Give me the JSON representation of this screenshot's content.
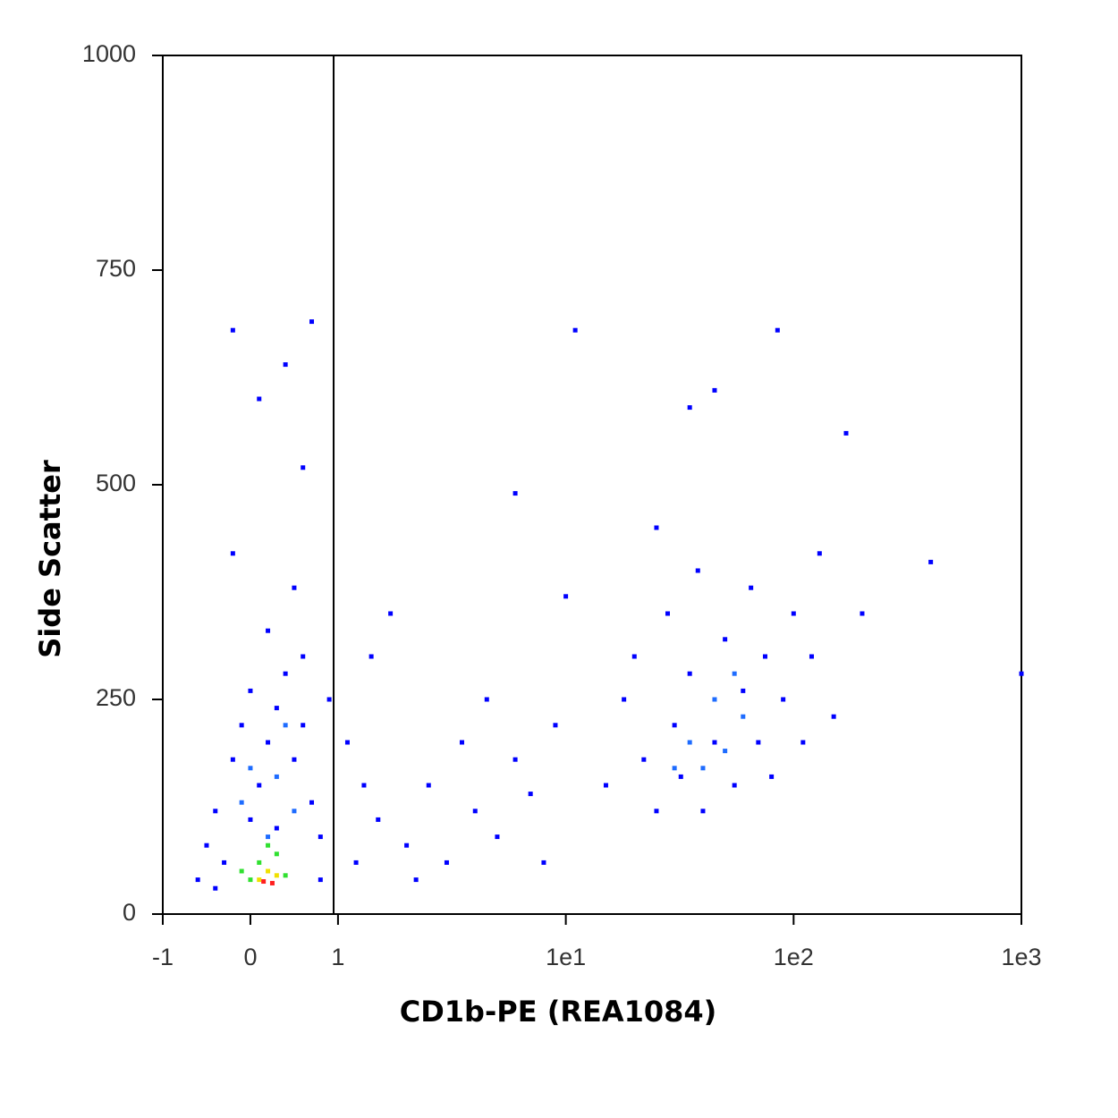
{
  "chart_data": {
    "type": "scatter",
    "x_label": "CD1b-PE (REA1084)",
    "y_label": "Side Scatter",
    "xscale": "biexponential",
    "xlim": [
      -1,
      1000
    ],
    "ylim": [
      0,
      1000
    ],
    "xticks": [
      -1,
      0,
      1,
      {
        "value": 10,
        "label": "1e1"
      },
      {
        "value": 100,
        "label": "1e2"
      },
      {
        "value": 1000,
        "label": "1e3"
      }
    ],
    "yticks": [
      0,
      250,
      500,
      750,
      1000
    ],
    "gate_x": 0.95,
    "series": [
      {
        "color": "#0000ff",
        "x": [
          -0.6,
          -0.5,
          -0.4,
          -0.3,
          -0.2,
          -0.1,
          0,
          0.1,
          0.2,
          0.3,
          0.4,
          0.5,
          0.6,
          0.7,
          0.8,
          0.9,
          1.1,
          1.3,
          1.5,
          1.2,
          0.2,
          0.5,
          -0.2,
          0.6,
          0.1,
          -0.2,
          0.7,
          0.4,
          1.4,
          1.7,
          0.3,
          -0.4,
          0.8,
          0,
          0.6,
          2,
          2.5,
          3,
          3.5,
          4,
          5,
          6,
          7,
          8,
          9,
          2.2,
          4.5,
          6,
          11,
          10,
          15,
          18,
          20,
          22,
          25,
          28,
          30,
          32,
          35,
          38,
          40,
          45,
          50,
          55,
          60,
          65,
          70,
          75,
          80,
          90,
          100,
          110,
          120,
          130,
          150,
          170,
          200,
          400,
          1000,
          85,
          45,
          25,
          35
        ],
        "y": [
          40,
          80,
          120,
          60,
          180,
          220,
          260,
          150,
          200,
          240,
          280,
          180,
          220,
          130,
          90,
          250,
          200,
          150,
          110,
          60,
          330,
          380,
          420,
          520,
          600,
          680,
          690,
          640,
          300,
          350,
          100,
          30,
          40,
          110,
          300,
          80,
          150,
          60,
          200,
          120,
          90,
          180,
          140,
          60,
          220,
          40,
          250,
          490,
          680,
          370,
          150,
          250,
          300,
          180,
          120,
          350,
          220,
          160,
          280,
          400,
          120,
          200,
          320,
          150,
          260,
          380,
          200,
          300,
          160,
          250,
          350,
          200,
          300,
          420,
          230,
          560,
          350,
          410,
          280,
          680,
          610,
          450,
          590
        ]
      },
      {
        "color": "#1e6cff",
        "x": [
          0,
          0.3,
          0.5,
          -0.1,
          0.4,
          0.2,
          35,
          40,
          45,
          50,
          60,
          55,
          30
        ],
        "y": [
          170,
          160,
          120,
          130,
          220,
          90,
          200,
          170,
          250,
          190,
          230,
          280,
          170
        ]
      },
      {
        "color": "#30e030",
        "x": [
          0.1,
          0.3,
          -0.1,
          0.4,
          0.2,
          0
        ],
        "y": [
          60,
          70,
          50,
          45,
          80,
          40
        ]
      },
      {
        "color": "#f0e000",
        "x": [
          0.1,
          0.3,
          0.2
        ],
        "y": [
          40,
          45,
          50
        ]
      },
      {
        "color": "#ff2020",
        "x": [
          0.15,
          0.25
        ],
        "y": [
          38,
          36
        ]
      }
    ]
  }
}
